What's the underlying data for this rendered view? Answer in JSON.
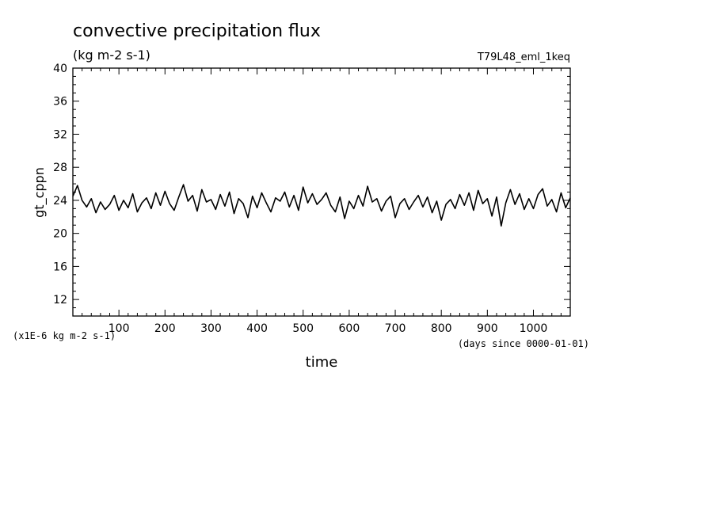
{
  "title": "convective precipitation flux",
  "subtitle": "(kg m-2 s-1)",
  "run_label": "T79L48_eml_1keq",
  "chart_data": {
    "type": "line",
    "xlabel": "time",
    "x_units": "(days since 0000-01-01)",
    "ylabel": "gt_cppn",
    "y_scale_note": "(x1E-6 kg m-2 s-1)",
    "xlim": [
      0,
      1080
    ],
    "ylim": [
      10,
      40
    ],
    "x_ticks": [
      100,
      200,
      300,
      400,
      500,
      600,
      700,
      800,
      900,
      1000
    ],
    "y_ticks": [
      12,
      16,
      20,
      24,
      28,
      32,
      36,
      40
    ],
    "grid": false,
    "series": [
      {
        "x": [
          0,
          10,
          20,
          30,
          40,
          50,
          60,
          70,
          80,
          90,
          100,
          110,
          120,
          130,
          140,
          150,
          160,
          170,
          180,
          190,
          200,
          210,
          220,
          230,
          240,
          250,
          260,
          270,
          280,
          290,
          300,
          310,
          320,
          330,
          340,
          350,
          360,
          370,
          380,
          390,
          400,
          410,
          420,
          430,
          440,
          450,
          460,
          470,
          480,
          490,
          500,
          510,
          520,
          530,
          540,
          550,
          560,
          570,
          580,
          590,
          600,
          610,
          620,
          630,
          640,
          650,
          660,
          670,
          680,
          690,
          700,
          710,
          720,
          730,
          740,
          750,
          760,
          770,
          780,
          790,
          800,
          810,
          820,
          830,
          840,
          850,
          860,
          870,
          880,
          890,
          900,
          910,
          920,
          930,
          940,
          950,
          960,
          970,
          980,
          990,
          1000,
          1010,
          1020,
          1030,
          1040,
          1050,
          1060,
          1070,
          1080
        ],
        "y": [
          24.5,
          25.8,
          24.0,
          23.2,
          24.2,
          22.5,
          23.8,
          22.9,
          23.5,
          24.6,
          22.8,
          24.0,
          23.1,
          24.8,
          22.6,
          23.7,
          24.3,
          23.0,
          24.9,
          23.4,
          25.1,
          23.6,
          22.8,
          24.4,
          25.9,
          23.9,
          24.6,
          22.7,
          25.3,
          23.8,
          24.1,
          22.9,
          24.7,
          23.3,
          25.0,
          22.4,
          24.2,
          23.6,
          21.9,
          24.5,
          23.1,
          24.9,
          23.7,
          22.6,
          24.3,
          23.9,
          25.0,
          23.2,
          24.6,
          22.8,
          25.6,
          23.7,
          24.8,
          23.5,
          24.1,
          24.9,
          23.4,
          22.6,
          24.4,
          21.8,
          23.9,
          23.0,
          24.6,
          23.3,
          25.7,
          23.8,
          24.2,
          22.7,
          23.9,
          24.5,
          21.9,
          23.6,
          24.2,
          22.9,
          23.8,
          24.6,
          23.2,
          24.4,
          22.5,
          23.9,
          21.6,
          23.5,
          24.1,
          23.0,
          24.7,
          23.4,
          24.9,
          22.8,
          25.2,
          23.6,
          24.2,
          22.1,
          24.4,
          20.9,
          23.7,
          25.3,
          23.5,
          24.8,
          22.9,
          24.2,
          23.0,
          24.7,
          25.4,
          23.3,
          24.1,
          22.6,
          24.9,
          23.1,
          24.3
        ]
      }
    ]
  }
}
